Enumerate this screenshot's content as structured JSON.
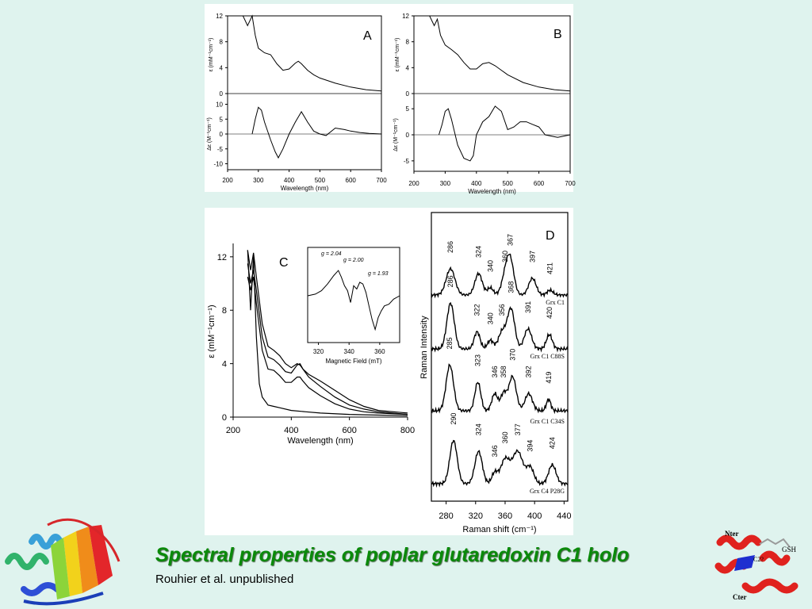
{
  "slide": {
    "title": "Spectral properties of poplar glutaredoxin C1 holo",
    "credit": "Rouhier et al. unpublished"
  },
  "structure_left": {
    "icon": "protein-ribbon-icon"
  },
  "structure_right": {
    "icon": "protein-ribbon-icon",
    "labels": [
      "Nter",
      "GSH",
      "C2?",
      "Cter"
    ]
  },
  "chart_data": [
    {
      "id": "A",
      "type": "line",
      "panel_label": "A",
      "xlabel": "Wavelength (nm)",
      "xlim": [
        200,
        700
      ],
      "xticks": [
        200,
        300,
        400,
        500,
        600,
        700
      ],
      "top": {
        "ylabel": "ε (mM⁻¹cm⁻¹)",
        "ylim": [
          0,
          12
        ],
        "yticks": [
          0,
          4,
          8,
          12
        ],
        "series": [
          {
            "x": [
              250,
              265,
              280,
              290,
              300,
              320,
              340,
              360,
              380,
              400,
              420,
              430,
              440,
              460,
              480,
              500,
              550,
              600,
              650,
              700
            ],
            "y": [
              12,
              10.5,
              12,
              9,
              7.0,
              6.3,
              6.0,
              4.6,
              3.6,
              3.8,
              4.7,
              5.0,
              4.6,
              3.6,
              2.9,
              2.4,
              1.6,
              1.0,
              0.6,
              0.4
            ]
          }
        ]
      },
      "bottom": {
        "ylabel": "Δε (M⁻¹cm⁻¹)",
        "ylim": [
          -12,
          12
        ],
        "yticks": [
          -10,
          -5,
          0,
          5,
          10
        ],
        "series": [
          {
            "x": [
              280,
              290,
              300,
              310,
              320,
              340,
              355,
              365,
              380,
              400,
              420,
              440,
              460,
              480,
              500,
              520,
              550,
              580,
              600,
              630,
              660,
              700
            ],
            "y": [
              0,
              5,
              9,
              8,
              4,
              -2,
              -6,
              -8,
              -5,
              0,
              4,
              7.5,
              4,
              1,
              0,
              -0.5,
              2,
              1.5,
              1,
              0.5,
              0.2,
              0
            ]
          }
        ]
      }
    },
    {
      "id": "B",
      "type": "line",
      "panel_label": "B",
      "xlabel": "Wavelength (nm)",
      "xlim": [
        200,
        700
      ],
      "xticks": [
        200,
        300,
        400,
        500,
        600,
        700
      ],
      "top": {
        "ylabel": "ε (mM⁻¹cm⁻¹)",
        "ylim": [
          0,
          12
        ],
        "yticks": [
          0,
          4,
          8,
          12
        ],
        "series": [
          {
            "x": [
              250,
              265,
              275,
              285,
              300,
              320,
              340,
              360,
              380,
              400,
              420,
              440,
              460,
              480,
              500,
              550,
              600,
              650,
              700
            ],
            "y": [
              12,
              10.5,
              11.5,
              9,
              7.5,
              6.8,
              6.0,
              4.8,
              3.8,
              3.8,
              4.6,
              4.8,
              4.3,
              3.6,
              2.9,
              1.7,
              1.0,
              0.6,
              0.4
            ]
          }
        ]
      },
      "bottom": {
        "ylabel": "Δε (M⁻¹cm⁻¹)",
        "ylim": [
          -7,
          7
        ],
        "yticks": [
          -5,
          0,
          5
        ],
        "series": [
          {
            "x": [
              280,
              290,
              300,
              310,
              320,
              340,
              360,
              380,
              390,
              400,
              420,
              440,
              460,
              480,
              500,
              520,
              540,
              560,
              580,
              600,
              620,
              660,
              700
            ],
            "y": [
              0,
              2,
              4.5,
              5,
              3,
              -2,
              -4.5,
              -5,
              -4,
              0,
              2.5,
              3.5,
              5.5,
              4.5,
              1,
              1.5,
              2.5,
              2.5,
              2.0,
              1.5,
              0,
              -0.5,
              0
            ]
          }
        ]
      }
    },
    {
      "id": "C",
      "type": "line",
      "panel_label": "C",
      "xlabel": "Wavelength (nm)",
      "ylabel": "ε (mM⁻¹cm⁻¹)",
      "xlim": [
        200,
        800
      ],
      "ylim": [
        0,
        13
      ],
      "xticks": [
        200,
        400,
        600,
        800
      ],
      "yticks": [
        0,
        4,
        8,
        12
      ],
      "series": [
        {
          "x": [
            250,
            260,
            270,
            280,
            300,
            320,
            340,
            360,
            380,
            400,
            420,
            430,
            440,
            460,
            500,
            550,
            600,
            650,
            700,
            800
          ],
          "y": [
            12.5,
            11,
            12.3,
            10.5,
            7,
            5.3,
            5.0,
            4.6,
            4.0,
            3.7,
            4.0,
            3.9,
            3.6,
            3.2,
            2.7,
            2.0,
            1.3,
            0.8,
            0.5,
            0.3
          ]
        },
        {
          "x": [
            250,
            260,
            270,
            280,
            300,
            320,
            340,
            360,
            380,
            400,
            420,
            430,
            440,
            460,
            500,
            550,
            600,
            650,
            700,
            800
          ],
          "y": [
            11.5,
            10,
            11,
            9.5,
            6,
            4.5,
            4.3,
            3.9,
            3.4,
            3.3,
            3.9,
            4.0,
            3.6,
            3.0,
            2.3,
            1.5,
            0.9,
            0.6,
            0.4,
            0.2
          ]
        },
        {
          "x": [
            250,
            260,
            270,
            280,
            300,
            320,
            340,
            360,
            380,
            400,
            420,
            430,
            440,
            460,
            500,
            550,
            600,
            650,
            700,
            800
          ],
          "y": [
            10.5,
            9.5,
            10.5,
            8.5,
            5,
            3.6,
            3.5,
            3.1,
            2.6,
            2.6,
            3.0,
            3.0,
            2.7,
            2.2,
            1.6,
            1.0,
            0.6,
            0.4,
            0.3,
            0.2
          ]
        },
        {
          "x": [
            250,
            260,
            270,
            280,
            290,
            300,
            320,
            340,
            360,
            400,
            450,
            500,
            600,
            800
          ],
          "y": [
            12.5,
            8,
            12.0,
            6,
            2.5,
            1.5,
            0.9,
            0.8,
            0.7,
            0.5,
            0.4,
            0.3,
            0.2,
            0.1
          ]
        }
      ],
      "inset": {
        "type": "line",
        "xlabel": "Magnetic Field (mT)",
        "xlim": [
          313,
          373
        ],
        "xticks": [
          320,
          340,
          360
        ],
        "annotations": [
          "g = 2.04",
          "g = 2.00",
          "g = 1.93"
        ],
        "series": [
          {
            "x": [
              313,
              318,
              322,
              326,
              330,
              333,
              335,
              337,
              339,
              341,
              343,
              345,
              347,
              349,
              351,
              353,
              355,
              357,
              359,
              361,
              363,
              366,
              369,
              373
            ],
            "y": [
              0.0,
              0.1,
              0.3,
              0.7,
              1.2,
              1.5,
              1.1,
              0.6,
              0.3,
              -0.4,
              0.6,
              0.4,
              0.8,
              0.7,
              0.2,
              -0.6,
              -1.4,
              -2.0,
              -1.3,
              -0.9,
              -0.6,
              -0.5,
              -0.2,
              0.0
            ]
          }
        ]
      }
    },
    {
      "id": "D",
      "type": "line",
      "panel_label": "D",
      "xlabel": "Raman shift (cm⁻¹)",
      "ylabel": "Raman Intensity",
      "xlim": [
        260,
        445
      ],
      "xticks": [
        280,
        320,
        360,
        400,
        440
      ],
      "spectra": [
        {
          "name": "Grx C1",
          "peaks": [
            {
              "x": 286,
              "h": 0.55,
              "w": 6
            },
            {
              "x": 324,
              "h": 0.45,
              "w": 5
            },
            {
              "x": 340,
              "h": 0.15,
              "w": 4
            },
            {
              "x": 360,
              "h": 0.35,
              "w": 5
            },
            {
              "x": 367,
              "h": 0.7,
              "w": 5
            },
            {
              "x": 397,
              "h": 0.35,
              "w": 5
            },
            {
              "x": 421,
              "h": 0.1,
              "w": 4
            }
          ],
          "peak_labels": [
            "286",
            "324",
            "340",
            "360",
            "367",
            "397",
            "421"
          ]
        },
        {
          "name": "Grx C1 C88S",
          "peaks": [
            {
              "x": 286,
              "h": 0.8,
              "w": 5
            },
            {
              "x": 322,
              "h": 0.3,
              "w": 4
            },
            {
              "x": 340,
              "h": 0.15,
              "w": 4
            },
            {
              "x": 356,
              "h": 0.3,
              "w": 5
            },
            {
              "x": 368,
              "h": 0.7,
              "w": 5
            },
            {
              "x": 391,
              "h": 0.35,
              "w": 5
            },
            {
              "x": 420,
              "h": 0.25,
              "w": 4
            }
          ],
          "peak_labels": [
            "286",
            "322",
            "340",
            "356",
            "368",
            "391",
            "420"
          ]
        },
        {
          "name": "Grx C1 C34S",
          "peaks": [
            {
              "x": 285,
              "h": 0.8,
              "w": 5
            },
            {
              "x": 323,
              "h": 0.5,
              "w": 4
            },
            {
              "x": 346,
              "h": 0.3,
              "w": 4
            },
            {
              "x": 358,
              "h": 0.3,
              "w": 4
            },
            {
              "x": 370,
              "h": 0.6,
              "w": 5
            },
            {
              "x": 392,
              "h": 0.3,
              "w": 5
            },
            {
              "x": 419,
              "h": 0.2,
              "w": 3
            }
          ],
          "peak_labels": [
            "285",
            "323",
            "346",
            "358",
            "370",
            "392",
            "419"
          ]
        },
        {
          "name": "Grx C4 P28G",
          "peaks": [
            {
              "x": 290,
              "h": 0.8,
              "w": 5
            },
            {
              "x": 324,
              "h": 0.6,
              "w": 5
            },
            {
              "x": 346,
              "h": 0.2,
              "w": 4
            },
            {
              "x": 360,
              "h": 0.45,
              "w": 6
            },
            {
              "x": 377,
              "h": 0.6,
              "w": 7
            },
            {
              "x": 394,
              "h": 0.3,
              "w": 5
            },
            {
              "x": 424,
              "h": 0.35,
              "w": 5
            }
          ],
          "peak_labels": [
            "290",
            "324",
            "346",
            "360",
            "377",
            "394",
            "424"
          ]
        }
      ]
    }
  ]
}
